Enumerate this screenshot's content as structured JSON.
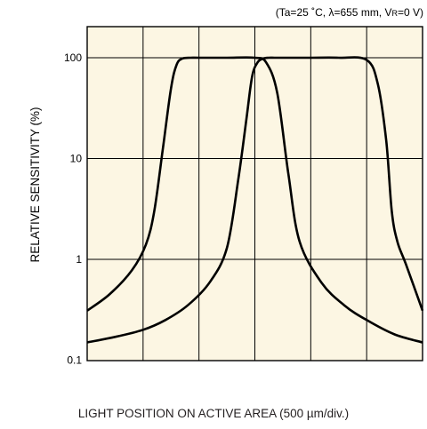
{
  "chart_data": {
    "type": "line",
    "conditions": "(Ta=25 ˚C, λ=655 mm, V",
    "conditions_sub": "R",
    "conditions_tail": "=0 V)",
    "xlabel": "LIGHT POSITION ON ACTIVE AREA (500 µm/div.)",
    "ylabel": "RELATIVE SENSITIVITY (%)",
    "yscale": "log",
    "ylim": [
      0.1,
      200
    ],
    "xlim": [
      0,
      6
    ],
    "x_divisions": 6,
    "y_ticks": [
      {
        "value": 0.1,
        "label": "0.1"
      },
      {
        "value": 1,
        "label": "1"
      },
      {
        "value": 10,
        "label": "10"
      },
      {
        "value": 100,
        "label": "100"
      }
    ],
    "grid": true,
    "plot_background": "#fcf6e3",
    "line_color": "#000000",
    "series": [
      {
        "x": [
          0,
          0.4,
          0.8,
          1.05,
          1.2,
          1.35,
          1.5,
          1.6,
          1.7,
          1.85,
          2.0,
          2.5,
          3.0,
          3.2,
          3.4,
          3.6,
          3.8,
          4.2,
          4.6,
          5.0,
          5.5,
          6.0
        ],
        "y": [
          0.31,
          0.45,
          0.78,
          1.4,
          3.0,
          12,
          50,
          85,
          98,
          100,
          100,
          100,
          100,
          90,
          45,
          7,
          1.5,
          0.58,
          0.35,
          0.25,
          0.18,
          0.15
        ]
      },
      {
        "x": [
          0,
          0.5,
          1.0,
          1.4,
          1.8,
          2.2,
          2.5,
          2.7,
          2.85,
          2.95,
          3.05,
          3.15,
          3.25,
          3.35,
          3.5,
          3.7,
          4.0,
          4.5,
          5.0,
          5.2,
          5.35,
          5.45,
          5.55,
          5.7,
          6.0
        ],
        "y": [
          0.15,
          0.17,
          0.2,
          0.25,
          0.35,
          0.6,
          1.3,
          6,
          25,
          65,
          90,
          98,
          100,
          100,
          100,
          100,
          100,
          100,
          95,
          55,
          15,
          3.0,
          1.5,
          0.9,
          0.31
        ]
      }
    ]
  }
}
